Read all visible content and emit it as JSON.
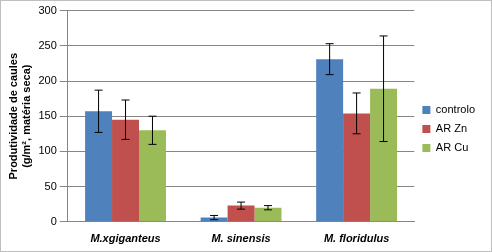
{
  "chart_data": {
    "type": "bar",
    "y_label": [
      "Produtividade de caules",
      "(g/m², matéria seca)"
    ],
    "categories": [
      "M.xgiganteus",
      "M. sinensis",
      "M. floridulus"
    ],
    "series": [
      {
        "name": "controlo",
        "color": "#4f81bd",
        "values": [
          157,
          6,
          231
        ],
        "errors": [
          30,
          3,
          22
        ]
      },
      {
        "name": "AR Zn",
        "color": "#c0504d",
        "values": [
          145,
          23,
          154
        ],
        "errors": [
          28,
          5,
          29
        ]
      },
      {
        "name": "AR Cu",
        "color": "#9bbb59",
        "values": [
          130,
          20,
          189
        ],
        "errors": [
          20,
          3,
          75
        ]
      }
    ],
    "ylim": [
      0,
      300
    ],
    "yticks": [
      0,
      50,
      100,
      150,
      200,
      250,
      300
    ],
    "grid": true,
    "legend": "right"
  }
}
